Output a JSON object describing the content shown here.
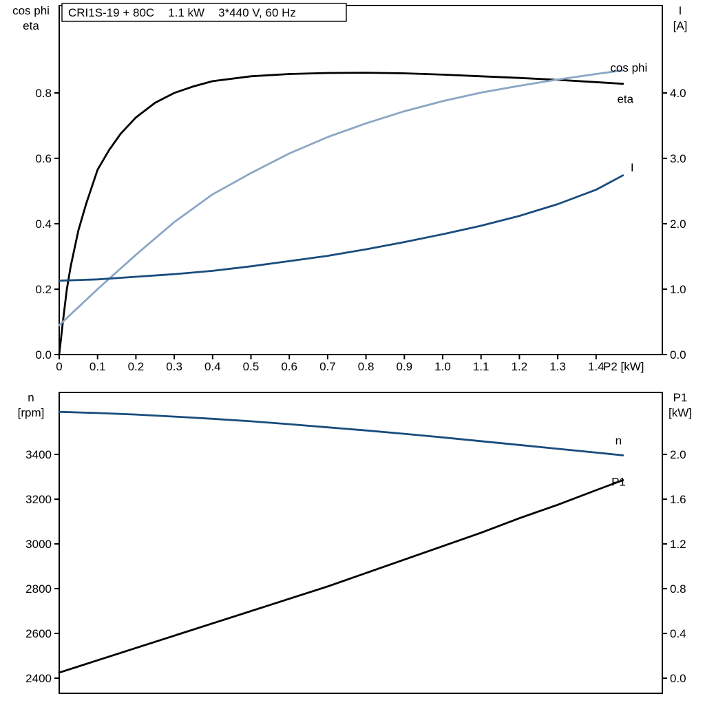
{
  "page": {
    "background": "#ffffff"
  },
  "title_box": {
    "segments": [
      "CRI1S-19 + 80C",
      "1.1 kW",
      "3*440 V, 60 Hz"
    ],
    "full_text": "CRI1S-19 + 80C   1.1 kW   3*440 V, 60 Hz"
  },
  "colors": {
    "frame": "#000000",
    "eta": "#000000",
    "cos_phi": "#8aa6c5",
    "current": "#1a4c7d",
    "speed": "#1a4c7d",
    "p1": "#000000"
  },
  "chart_data": [
    {
      "type": "line",
      "name": "motor-performance",
      "title": "CRI1S-19 + 80C   1.1 kW   3*440 V, 60 Hz",
      "x_axis": {
        "label": "P2 [kW]",
        "tick_labels": [
          "0",
          "0.1",
          "0.2",
          "0.3",
          "0.4",
          "0.5",
          "0.6",
          "0.7",
          "0.8",
          "0.9",
          "1.0",
          "1.1",
          "1.2",
          "1.3",
          "1.4"
        ],
        "tick_values": [
          0,
          0.1,
          0.2,
          0.3,
          0.4,
          0.5,
          0.6,
          0.7,
          0.8,
          0.9,
          1.0,
          1.1,
          1.2,
          1.3,
          1.4
        ],
        "range": [
          0,
          1.5727
        ]
      },
      "left_axis": {
        "title_lines": [
          "cos phi",
          "eta"
        ],
        "tick_labels": [
          "0.0",
          "0.2",
          "0.4",
          "0.6",
          "0.8"
        ],
        "tick_values": [
          0,
          0.2,
          0.4,
          0.6,
          0.8
        ],
        "range": [
          0,
          1.0674
        ]
      },
      "right_axis": {
        "title_lines": [
          "I",
          "[A]"
        ],
        "tick_labels": [
          "0.0",
          "1.0",
          "2.0",
          "3.0",
          "4.0"
        ],
        "tick_values": [
          0,
          1,
          2,
          3,
          4
        ],
        "range": [
          0,
          5.337
        ]
      },
      "series": [
        {
          "name": "eta",
          "axis": "left",
          "color_key": "eta",
          "label": {
            "text": "eta",
            "x": 1.455,
            "y": 0.77
          },
          "x": [
            0,
            0.01,
            0.02,
            0.03,
            0.05,
            0.07,
            0.1,
            0.13,
            0.16,
            0.2,
            0.25,
            0.3,
            0.35,
            0.4,
            0.5,
            0.6,
            0.7,
            0.8,
            0.9,
            1.0,
            1.1,
            1.2,
            1.3,
            1.4,
            1.47
          ],
          "y": [
            0,
            0.105,
            0.2,
            0.27,
            0.38,
            0.46,
            0.565,
            0.625,
            0.675,
            0.725,
            0.77,
            0.8,
            0.82,
            0.836,
            0.851,
            0.858,
            0.861,
            0.862,
            0.86,
            0.856,
            0.851,
            0.846,
            0.84,
            0.833,
            0.828
          ]
        },
        {
          "name": "cos phi",
          "axis": "left",
          "color_key": "cos_phi",
          "label": {
            "text": "cos phi",
            "x": 1.437,
            "y": 0.865
          },
          "x": [
            0,
            0.1,
            0.2,
            0.3,
            0.4,
            0.5,
            0.6,
            0.7,
            0.8,
            0.9,
            1.0,
            1.1,
            1.2,
            1.3,
            1.4,
            1.47
          ],
          "y": [
            0.09,
            0.2,
            0.305,
            0.405,
            0.49,
            0.555,
            0.615,
            0.665,
            0.707,
            0.744,
            0.775,
            0.801,
            0.822,
            0.841,
            0.858,
            0.869
          ]
        },
        {
          "name": "I",
          "axis": "right",
          "color_key": "current",
          "label": {
            "text": "I",
            "x": 1.49,
            "y": 2.8
          },
          "x": [
            0,
            0.1,
            0.2,
            0.3,
            0.4,
            0.5,
            0.6,
            0.7,
            0.8,
            0.9,
            1.0,
            1.1,
            1.2,
            1.3,
            1.4,
            1.47
          ],
          "y": [
            1.13,
            1.15,
            1.19,
            1.23,
            1.28,
            1.35,
            1.43,
            1.51,
            1.61,
            1.72,
            1.84,
            1.97,
            2.12,
            2.3,
            2.52,
            2.74
          ]
        }
      ]
    },
    {
      "type": "line",
      "name": "speed-power",
      "title": "",
      "x_axis": {
        "label": "",
        "tick_labels": [],
        "tick_values": [],
        "range": [
          0,
          1.5727
        ]
      },
      "left_axis": {
        "title_lines": [
          "n",
          "[rpm]"
        ],
        "tick_labels": [
          "2400",
          "2600",
          "2800",
          "3000",
          "3200",
          "3400"
        ],
        "tick_values": [
          2400,
          2600,
          2800,
          3000,
          3200,
          3400
        ],
        "range": [
          2332.3,
          3676.9
        ]
      },
      "right_axis": {
        "title_lines": [
          "P1",
          "[kW]"
        ],
        "tick_labels": [
          "0.0",
          "0.4",
          "0.8",
          "1.2",
          "1.6",
          "2.0"
        ],
        "tick_values": [
          0,
          0.4,
          0.8,
          1.2,
          1.6,
          2.0
        ],
        "range": [
          -0.135,
          2.554
        ]
      },
      "series": [
        {
          "name": "n",
          "axis": "left",
          "color_key": "speed",
          "label": {
            "text": "n",
            "x": 1.45,
            "y": 3445
          },
          "x": [
            0,
            0.1,
            0.2,
            0.3,
            0.4,
            0.5,
            0.6,
            0.7,
            0.8,
            0.9,
            1.0,
            1.1,
            1.2,
            1.3,
            1.4,
            1.47
          ],
          "y": [
            3590,
            3585,
            3578,
            3569,
            3559,
            3548,
            3535,
            3521,
            3507,
            3492,
            3476,
            3459,
            3442,
            3425,
            3408,
            3396
          ]
        },
        {
          "name": "P1",
          "axis": "right",
          "color_key": "p1",
          "label": {
            "text": "P1",
            "x": 1.44,
            "y": 1.72
          },
          "x": [
            0,
            0.1,
            0.2,
            0.3,
            0.4,
            0.5,
            0.6,
            0.7,
            0.8,
            0.9,
            1.0,
            1.1,
            1.2,
            1.3,
            1.4,
            1.47
          ],
          "y": [
            0.05,
            0.16,
            0.27,
            0.38,
            0.49,
            0.6,
            0.71,
            0.82,
            0.94,
            1.06,
            1.18,
            1.3,
            1.43,
            1.55,
            1.68,
            1.77
          ]
        }
      ]
    }
  ]
}
